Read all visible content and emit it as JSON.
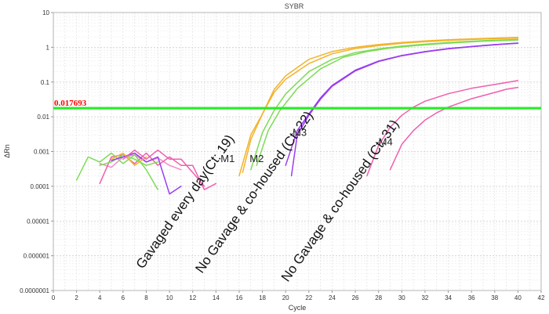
{
  "chart_data": {
    "type": "line",
    "title": "SYBR",
    "xlabel": "Cycle",
    "ylabel": "ΔRn",
    "xlim": [
      0,
      42
    ],
    "ylim": [
      1e-07,
      10
    ],
    "yscale": "log",
    "grid": true,
    "x_ticks": [
      "0",
      "2",
      "4",
      "6",
      "8",
      "10",
      "12",
      "14",
      "16",
      "18",
      "20",
      "22",
      "24",
      "26",
      "28",
      "30",
      "32",
      "34",
      "36",
      "38",
      "40",
      "42"
    ],
    "y_ticks": [
      "0.0000001",
      "0.000001",
      "0.00001",
      "0.0001",
      "0.001",
      "0.01",
      "0.1",
      "1",
      "10"
    ],
    "threshold": {
      "value": 0.017693,
      "label": "0.017693",
      "color": "#22ee22"
    },
    "colors": {
      "gold": "#f2b32c",
      "green": "#7edb55",
      "purple": "#9a3df0",
      "pink": "#ef5fae",
      "pink_light": "#f28bc8"
    },
    "series": [
      {
        "color": "#f2b32c",
        "x": [
          16,
          17,
          18,
          19,
          20,
          22,
          24,
          26,
          28,
          30,
          32,
          34,
          36,
          38,
          40
        ],
        "y": [
          0.0002,
          0.003,
          0.012,
          0.05,
          0.12,
          0.34,
          0.65,
          0.92,
          1.12,
          1.3,
          1.45,
          1.58,
          1.68,
          1.77,
          1.83
        ]
      },
      {
        "color": "#f2b32c",
        "x": [
          16.3,
          17,
          18,
          19,
          20,
          22,
          24,
          26,
          28,
          30,
          32,
          34,
          36,
          38,
          40
        ],
        "y": [
          0.00025,
          0.0022,
          0.012,
          0.06,
          0.15,
          0.45,
          0.75,
          1.0,
          1.2,
          1.38,
          1.52,
          1.65,
          1.75,
          1.84,
          1.92
        ]
      },
      {
        "color": "#7edb55",
        "x": [
          17,
          18,
          19,
          20,
          22,
          24,
          26,
          28,
          30,
          32,
          34,
          36,
          38,
          40
        ],
        "y": [
          0.0003,
          0.0035,
          0.015,
          0.045,
          0.2,
          0.45,
          0.7,
          0.9,
          1.08,
          1.23,
          1.37,
          1.5,
          1.6,
          1.67
        ]
      },
      {
        "color": "#7edb55",
        "x": [
          17.5,
          18.5,
          19.5,
          21,
          23,
          25,
          27,
          29,
          31,
          33,
          35,
          37,
          39,
          40
        ],
        "y": [
          0.0004,
          0.004,
          0.015,
          0.065,
          0.24,
          0.52,
          0.75,
          0.95,
          1.1,
          1.25,
          1.38,
          1.5,
          1.58,
          1.62
        ]
      },
      {
        "color": "#9a3df0",
        "x": [
          20,
          21,
          22,
          23,
          24,
          26,
          28,
          30,
          32,
          34,
          36,
          38,
          40
        ],
        "y": [
          0.0004,
          0.004,
          0.012,
          0.035,
          0.08,
          0.22,
          0.4,
          0.58,
          0.75,
          0.92,
          1.05,
          1.2,
          1.32
        ]
      },
      {
        "color": "#9a3df0",
        "x": [
          20.5,
          21,
          22,
          23,
          24,
          26,
          28,
          30,
          32,
          34,
          36,
          38,
          40
        ],
        "y": [
          0.0002,
          0.003,
          0.011,
          0.032,
          0.075,
          0.21,
          0.39,
          0.57,
          0.74,
          0.9,
          1.04,
          1.18,
          1.3
        ]
      },
      {
        "color": "#ef5fae",
        "x": [
          27,
          28,
          29,
          30,
          31,
          32,
          34,
          36,
          38,
          40
        ],
        "y": [
          0.0002,
          0.0015,
          0.005,
          0.011,
          0.019,
          0.028,
          0.046,
          0.066,
          0.085,
          0.11
        ]
      },
      {
        "color": "#ef5fae",
        "x": [
          29,
          30,
          31,
          32,
          33,
          34,
          36,
          38,
          39,
          40
        ],
        "y": [
          0.0003,
          0.0016,
          0.004,
          0.008,
          0.013,
          0.019,
          0.033,
          0.05,
          0.062,
          0.07
        ]
      },
      {
        "color": "#f28bc8",
        "x": [
          4,
          5,
          6,
          7,
          8,
          9,
          10,
          11
        ],
        "y": [
          0.00045,
          0.00035,
          0.0007,
          0.0008,
          0.0005,
          0.00065,
          0.0004,
          0.0003
        ]
      },
      {
        "color": "#ef5fae",
        "x": [
          4,
          5,
          6,
          7,
          8,
          9,
          10,
          11,
          12,
          13,
          14
        ],
        "y": [
          0.00012,
          0.0007,
          0.0008,
          0.00045,
          0.0009,
          0.0004,
          0.0007,
          0.0004,
          0.0004,
          8e-05,
          0.00012
        ]
      },
      {
        "color": "#7edb55",
        "x": [
          2,
          3,
          4,
          5,
          6,
          7,
          8,
          9
        ],
        "y": [
          0.00015,
          0.0007,
          0.0005,
          0.0009,
          0.00045,
          0.0008,
          0.0003,
          8e-05
        ]
      },
      {
        "color": "#7edb55",
        "x": [
          4,
          5,
          6,
          7,
          8,
          9
        ],
        "y": [
          0.0004,
          0.0005,
          0.0008,
          0.0006,
          0.0004,
          0.0005
        ]
      },
      {
        "color": "#9a3df0",
        "x": [
          5,
          6,
          7,
          8,
          9,
          10,
          11
        ],
        "y": [
          0.00055,
          0.0007,
          0.0009,
          0.0005,
          0.0007,
          6e-05,
          0.0001
        ]
      },
      {
        "color": "#f2b32c",
        "x": [
          5,
          6,
          7,
          8
        ],
        "y": [
          0.0006,
          0.0009,
          0.0004,
          0.0007
        ]
      },
      {
        "color": "#ef5fae",
        "x": [
          6,
          7,
          8,
          9,
          10,
          11,
          12,
          13
        ],
        "y": [
          0.0006,
          0.0011,
          0.0006,
          0.0011,
          0.0006,
          0.0006,
          0.00025,
          0.0001
        ]
      }
    ],
    "curve_labels": [
      {
        "text": "M1",
        "x": 14.4,
        "y": 0.0005
      },
      {
        "text": "M2",
        "x": 16.9,
        "y": 0.0005
      },
      {
        "text": "M3",
        "x": 20.6,
        "y": 0.0028
      },
      {
        "text": "M4",
        "x": 28,
        "y": 0.0015
      }
    ],
    "group_labels": [
      {
        "text": "Gavaged every day(Ct: 19)",
        "x": 7.7,
        "y": 4e-07
      },
      {
        "text": "No Gavage & co-housed (Ct: 22)",
        "x": 12.8,
        "y": 3e-07
      },
      {
        "text": "No Gavage & co-housed (Ct: 31)",
        "x": 20.2,
        "y": 1.7e-07
      }
    ]
  }
}
